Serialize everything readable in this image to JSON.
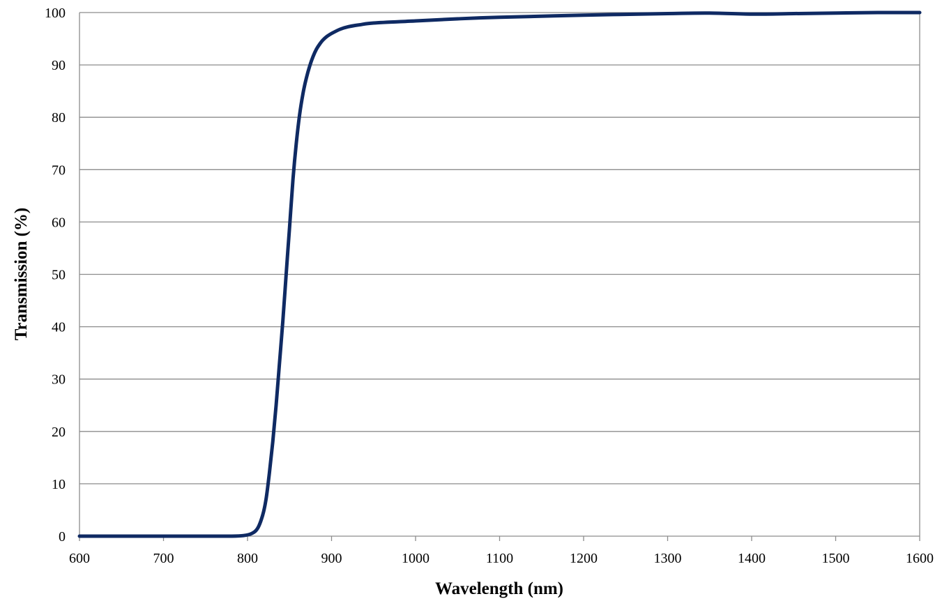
{
  "chart_data": {
    "type": "line",
    "title": "",
    "xlabel": "Wavelength (nm)",
    "ylabel": "Transmission (%)",
    "xlim": [
      600,
      1600
    ],
    "ylim": [
      0,
      100
    ],
    "xticks": [
      600,
      700,
      800,
      900,
      1000,
      1100,
      1200,
      1300,
      1400,
      1500,
      1600
    ],
    "yticks": [
      0,
      10,
      20,
      30,
      40,
      50,
      60,
      70,
      80,
      90,
      100
    ],
    "grid": "horizontal",
    "legend": "none",
    "series": [
      {
        "color": "#0f2a63",
        "x": [
          600,
          650,
          700,
          750,
          780,
          795,
          805,
          812,
          818,
          822,
          826,
          830,
          834,
          838,
          842,
          846,
          850,
          854,
          858,
          862,
          866,
          870,
          874,
          878,
          882,
          886,
          890,
          895,
          900,
          910,
          920,
          935,
          950,
          1000,
          1050,
          1100,
          1200,
          1300,
          1350,
          1400,
          1450,
          1500,
          1550,
          1600
        ],
        "y": [
          0,
          0,
          0,
          0,
          0,
          0.1,
          0.5,
          1.5,
          4,
          7,
          12,
          18,
          25,
          33,
          41,
          50,
          59,
          68,
          75,
          80.5,
          84.5,
          87.5,
          89.8,
          91.6,
          93,
          94,
          94.8,
          95.5,
          96,
          96.8,
          97.3,
          97.7,
          98,
          98.4,
          98.8,
          99.1,
          99.5,
          99.8,
          99.9,
          99.7,
          99.8,
          99.9,
          100,
          100
        ]
      }
    ]
  }
}
